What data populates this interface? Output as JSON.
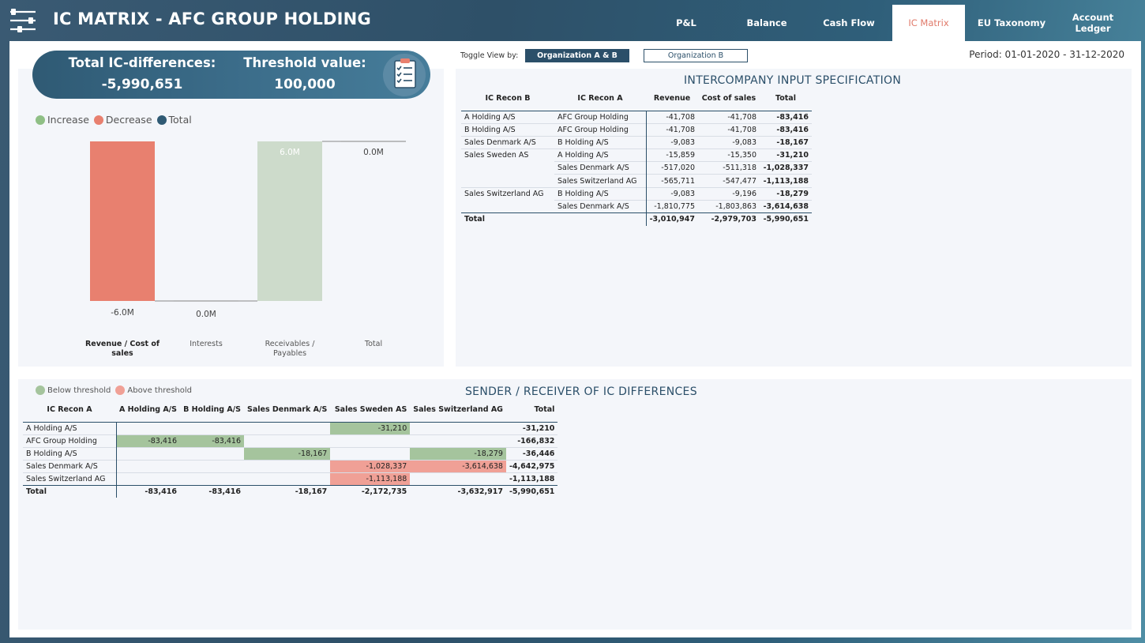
{
  "header": {
    "title": "IC MATRIX - AFC GROUP HOLDING",
    "tabs": [
      {
        "label": "P&L",
        "active": false
      },
      {
        "label": "Balance",
        "active": false
      },
      {
        "label": "Cash Flow",
        "active": false
      },
      {
        "label": "IC Matrix",
        "active": true
      },
      {
        "label": "EU Taxonomy",
        "active": false
      },
      {
        "label": "Account Ledger",
        "active": false
      }
    ]
  },
  "summary": {
    "total_label": "Total IC-differences:",
    "total_value": "-5,990,651",
    "threshold_label": "Threshold value:",
    "threshold_value": "100,000",
    "icon": "clipboard-checklist-icon"
  },
  "colors": {
    "increase": "#8fbf85",
    "decrease": "#e8806f",
    "total": "#2f5a74",
    "below_threshold": "#a5c49d",
    "above_threshold": "#f0a096",
    "accent": "#2b4f69",
    "active_tab": "#e07a6a"
  },
  "waterfall_legend": [
    "Increase",
    "Decrease",
    "Total"
  ],
  "chart_data": {
    "type": "waterfall",
    "categories": [
      "Revenue / Cost of sales",
      "Interests",
      "Receivables / Payables",
      "Total"
    ],
    "values": [
      -6.0,
      0.0,
      6.0,
      0.0
    ],
    "kinds": [
      "decrease",
      "decrease",
      "increase",
      "total"
    ],
    "data_labels": [
      "-6.0M",
      "0.0M",
      "6.0M",
      "0.0M"
    ],
    "unit": "M",
    "legend": [
      "Increase",
      "Decrease",
      "Total"
    ],
    "legend_position": "top-left",
    "grid": false
  },
  "toggle": {
    "label": "Toggle View by:",
    "options": [
      "Organization A & B",
      "Organization B"
    ],
    "selected": "Organization A & B"
  },
  "period": "Period: 01-01-2020 - 31-12-2020",
  "spec": {
    "title": "INTERCOMPANY INPUT SPECIFICATION",
    "columns": [
      "IC Recon B",
      "IC Recon A",
      "Revenue",
      "Cost of sales",
      "Total"
    ],
    "rows": [
      {
        "b": "A Holding A/S",
        "a": "AFC Group Holding",
        "revenue": "-41,708",
        "cos": "-41,708",
        "total": "-83,416"
      },
      {
        "b": "B Holding A/S",
        "a": "AFC Group Holding",
        "revenue": "-41,708",
        "cos": "-41,708",
        "total": "-83,416"
      },
      {
        "b": "Sales Denmark A/S",
        "a": "B Holding A/S",
        "revenue": "-9,083",
        "cos": "-9,083",
        "total": "-18,167"
      },
      {
        "b": "Sales Sweden AS",
        "a": "A Holding A/S",
        "revenue": "-15,859",
        "cos": "-15,350",
        "total": "-31,210"
      },
      {
        "b": "",
        "a": "Sales Denmark A/S",
        "revenue": "-517,020",
        "cos": "-511,318",
        "total": "-1,028,337"
      },
      {
        "b": "",
        "a": "Sales Switzerland AG",
        "revenue": "-565,711",
        "cos": "-547,477",
        "total": "-1,113,188"
      },
      {
        "b": "Sales Switzerland AG",
        "a": "B Holding A/S",
        "revenue": "-9,083",
        "cos": "-9,196",
        "total": "-18,279"
      },
      {
        "b": "",
        "a": "Sales Denmark A/S",
        "revenue": "-1,810,775",
        "cos": "-1,803,863",
        "total": "-3,614,638"
      }
    ],
    "total": {
      "label": "Total",
      "revenue": "-3,010,947",
      "cos": "-2,979,703",
      "total": "-5,990,651"
    }
  },
  "matrix": {
    "title": "SENDER / RECEIVER OF IC DIFFERENCES",
    "legend": [
      "Below threshold",
      "Above threshold"
    ],
    "columns": [
      "IC Recon A",
      "A Holding A/S",
      "B Holding A/S",
      "Sales Denmark A/S",
      "Sales Sweden AS",
      "Sales Switzerland AG",
      "Total"
    ],
    "rows": [
      {
        "label": "A Holding A/S",
        "cells": [
          "",
          "",
          "",
          "-31,210",
          ""
        ],
        "status": [
          "",
          "",
          "",
          "below",
          ""
        ],
        "total": "-31,210"
      },
      {
        "label": "AFC Group Holding",
        "cells": [
          "-83,416",
          "-83,416",
          "",
          "",
          ""
        ],
        "status": [
          "below",
          "below",
          "",
          "",
          ""
        ],
        "total": "-166,832"
      },
      {
        "label": "B Holding A/S",
        "cells": [
          "",
          "",
          "-18,167",
          "",
          "-18,279"
        ],
        "status": [
          "",
          "",
          "below",
          "",
          "below"
        ],
        "total": "-36,446"
      },
      {
        "label": "Sales Denmark A/S",
        "cells": [
          "",
          "",
          "",
          "-1,028,337",
          "-3,614,638"
        ],
        "status": [
          "",
          "",
          "",
          "above",
          "above"
        ],
        "total": "-4,642,975"
      },
      {
        "label": "Sales Switzerland AG",
        "cells": [
          "",
          "",
          "",
          "-1,113,188",
          ""
        ],
        "status": [
          "",
          "",
          "",
          "above",
          ""
        ],
        "total": "-1,113,188"
      }
    ],
    "total": {
      "label": "Total",
      "cells": [
        "-83,416",
        "-83,416",
        "-18,167",
        "-2,172,735",
        "-3,632,917"
      ],
      "total": "-5,990,651"
    }
  }
}
